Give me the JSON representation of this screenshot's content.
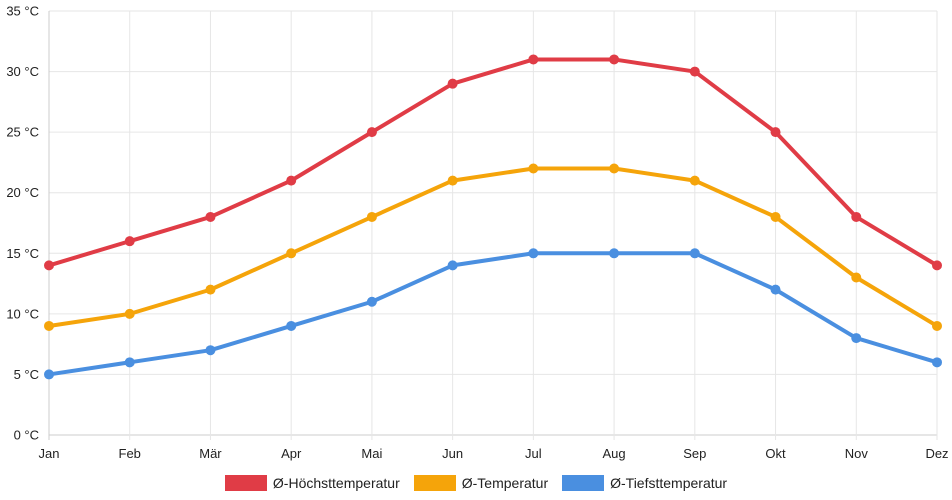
{
  "chart_data": {
    "type": "line",
    "categories": [
      "Jan",
      "Feb",
      "Mär",
      "Apr",
      "Mai",
      "Jun",
      "Jul",
      "Aug",
      "Sep",
      "Okt",
      "Nov",
      "Dez"
    ],
    "ylim": [
      0,
      35
    ],
    "y_ticks": [
      0,
      5,
      10,
      15,
      20,
      25,
      30,
      35
    ],
    "y_unit": " °C",
    "grid": true,
    "legend_position": "bottom",
    "series": [
      {
        "name": "Ø-Höchsttemperatur",
        "color": "#e03c46",
        "values": [
          14,
          16,
          18,
          21,
          25,
          29,
          31,
          31,
          30,
          25,
          18,
          14
        ]
      },
      {
        "name": "Ø-Temperatur",
        "color": "#f5a40a",
        "values": [
          9,
          10,
          12,
          15,
          18,
          21,
          22,
          22,
          21,
          18,
          13,
          9
        ]
      },
      {
        "name": "Ø-Tiefsttemperatur",
        "color": "#4a8fe0",
        "values": [
          5,
          6,
          7,
          9,
          11,
          14,
          15,
          15,
          15,
          12,
          8,
          6
        ]
      }
    ]
  }
}
